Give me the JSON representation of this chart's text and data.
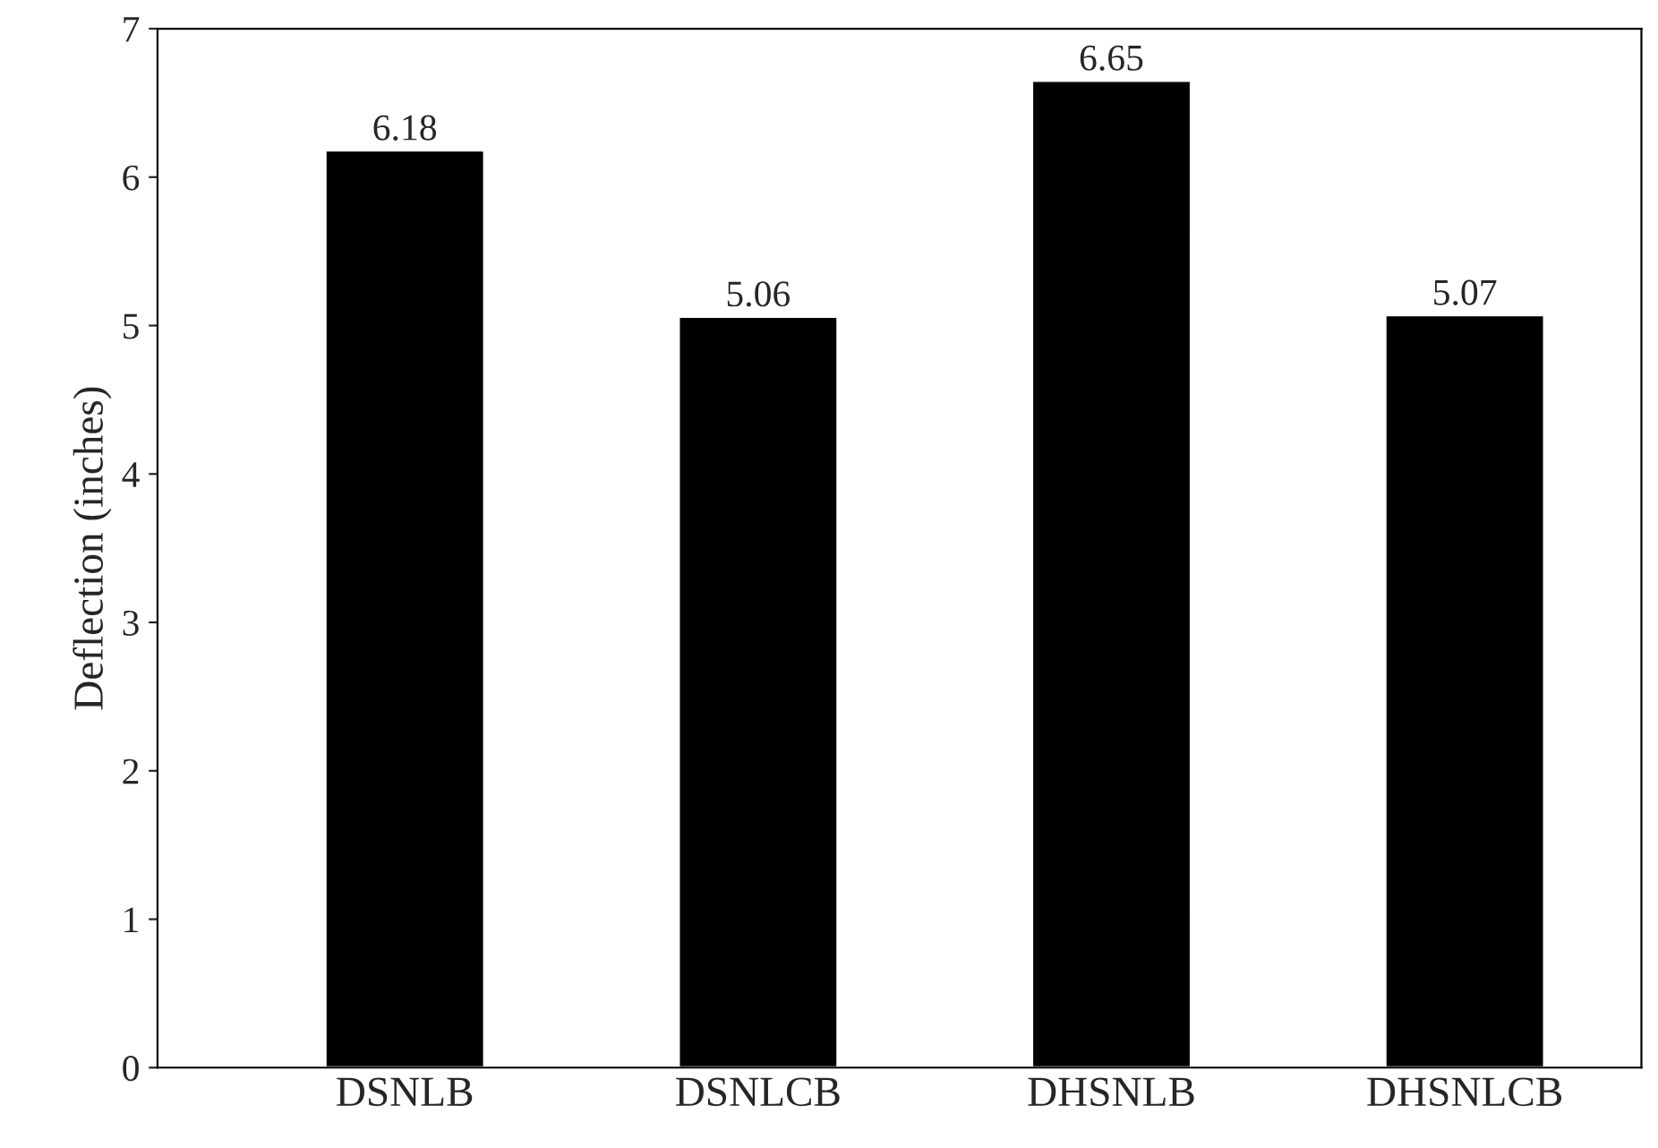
{
  "chart_data": {
    "type": "bar",
    "ylabel": "Deflection (inches)",
    "categories": [
      "DSNLB",
      "DSNLCB",
      "DHSNLB",
      "DHSNLCB"
    ],
    "values": [
      6.18,
      5.06,
      6.65,
      5.07
    ],
    "color": "#000000",
    "ylim": [
      0,
      7
    ],
    "yticks": [
      0,
      1,
      2,
      3,
      4,
      5,
      6,
      7
    ],
    "data_labels": true,
    "grid": false,
    "legend": false
  }
}
